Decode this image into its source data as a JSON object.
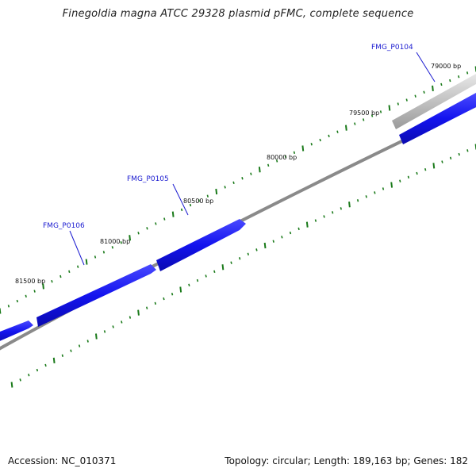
{
  "title": "Finegoldia magna ATCC 29328 plasmid pFMC, complete sequence",
  "footer": {
    "accession_label": "Accession: NC_010371",
    "stats_label": "Topology: circular; Length: 189,163 bp; Genes: 182"
  },
  "ticks": [
    {
      "bp": 79000,
      "label": "79000 bp"
    },
    {
      "bp": 79500,
      "label": "79500 bp"
    },
    {
      "bp": 80000,
      "label": "80000 bp"
    },
    {
      "bp": 80500,
      "label": "80500 bp"
    },
    {
      "bp": 81000,
      "label": "81000 bp"
    },
    {
      "bp": 81500,
      "label": "81500 bp"
    }
  ],
  "genes": [
    {
      "id": "FMG_P0104",
      "label": "FMG_P0104",
      "color": "#1313ee"
    },
    {
      "id": "FMG_P0105",
      "label": "FMG_P0105",
      "color": "#1313ee"
    },
    {
      "id": "FMG_P0106",
      "label": "FMG_P0106",
      "color": "#1313ee"
    }
  ],
  "colors": {
    "backbone": "#7a7a7a",
    "tick": "#1a7a1a",
    "gene": "#1313ee",
    "gene_label": "#1a1ad0"
  }
}
